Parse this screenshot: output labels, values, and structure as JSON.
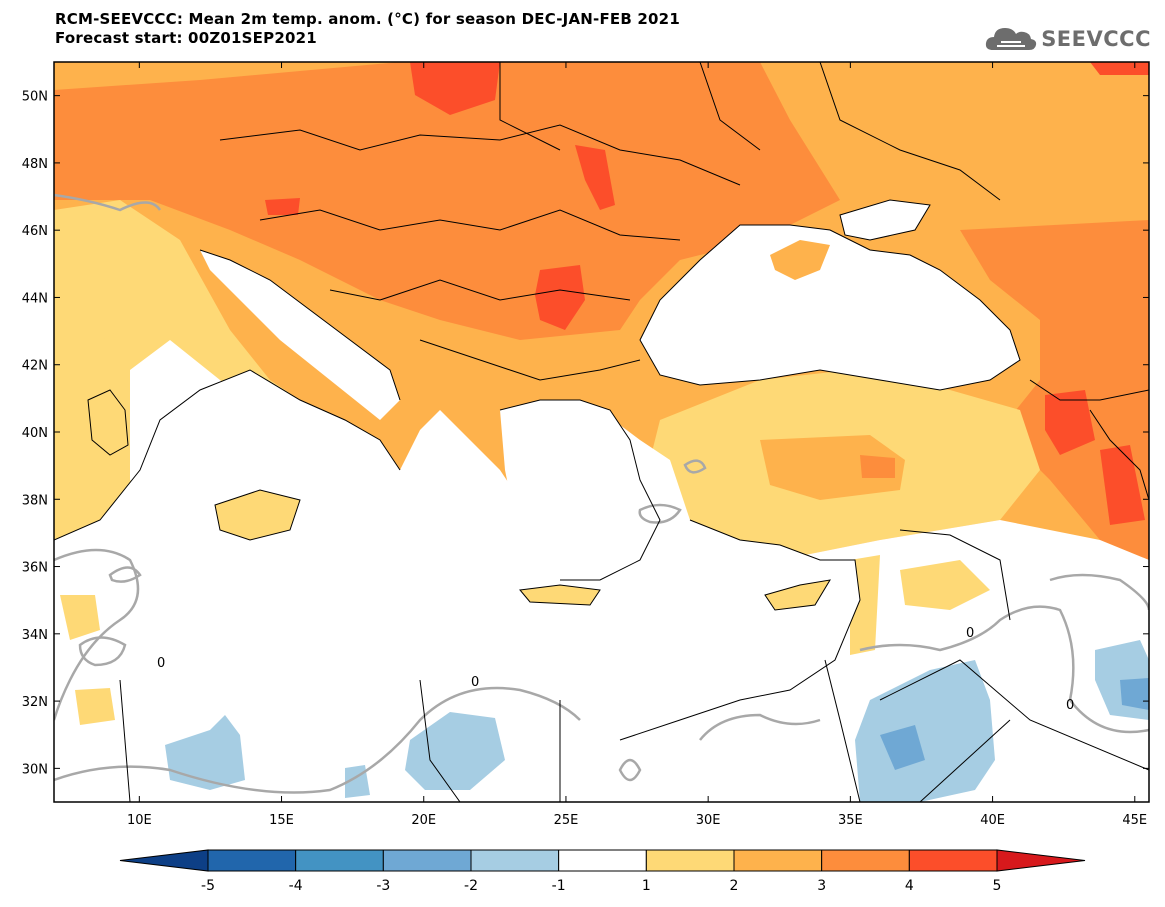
{
  "title": {
    "line1": "RCM-SEEVCCC: Mean 2m temp. anom. (°C) for season DEC-JAN-FEB 2021",
    "line2": "Forecast start: 00Z01SEP2021"
  },
  "logo": {
    "text": "SEEVCCC",
    "icon": "cloud-icon",
    "color": "#6d6d6d"
  },
  "map": {
    "lon_range": [
      7,
      45.5
    ],
    "lat_range": [
      29,
      51
    ],
    "lat_ticks": [
      {
        "value": 50,
        "label": "50N"
      },
      {
        "value": 48,
        "label": "48N"
      },
      {
        "value": 46,
        "label": "46N"
      },
      {
        "value": 44,
        "label": "44N"
      },
      {
        "value": 42,
        "label": "42N"
      },
      {
        "value": 40,
        "label": "40N"
      },
      {
        "value": 38,
        "label": "38N"
      },
      {
        "value": 36,
        "label": "36N"
      },
      {
        "value": 34,
        "label": "34N"
      },
      {
        "value": 32,
        "label": "32N"
      },
      {
        "value": 30,
        "label": "30N"
      }
    ],
    "lon_ticks": [
      {
        "value": 10,
        "label": "10E"
      },
      {
        "value": 15,
        "label": "15E"
      },
      {
        "value": 20,
        "label": "20E"
      },
      {
        "value": 25,
        "label": "25E"
      },
      {
        "value": 30,
        "label": "30E"
      },
      {
        "value": 35,
        "label": "35E"
      },
      {
        "value": 40,
        "label": "40E"
      },
      {
        "value": 45,
        "label": "45E"
      }
    ],
    "contour_label": "0"
  },
  "colorbar": {
    "bounds": [
      "-5",
      "-4",
      "-3",
      "-2",
      "-1",
      "1",
      "2",
      "3",
      "4",
      "5"
    ],
    "colors": [
      "#0d3f86",
      "#2166ac",
      "#4393c3",
      "#6fa8d4",
      "#a6cde3",
      "#ffffff",
      "#fed976",
      "#feb24c",
      "#fd8d3c",
      "#fc4e2a",
      "#d7191c"
    ]
  }
}
